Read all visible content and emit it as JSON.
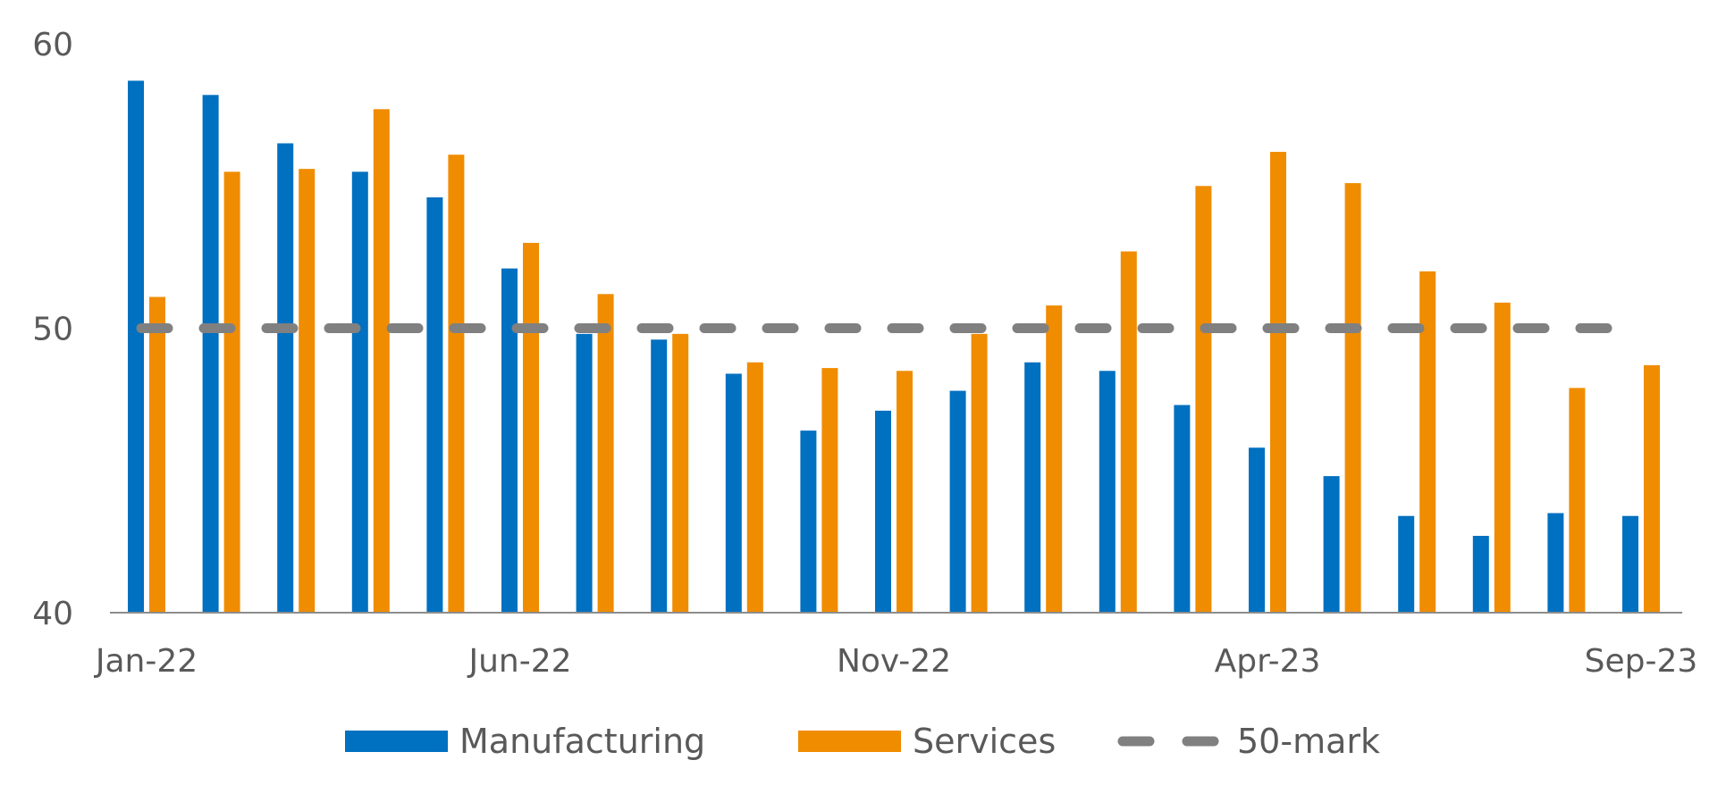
{
  "chart_data": {
    "type": "bar",
    "title": "",
    "xlabel": "",
    "ylabel": "",
    "ylim": [
      40,
      60
    ],
    "yticks": [
      40,
      50,
      60
    ],
    "xtick_labels": [
      {
        "index": 0,
        "label": "Jan-22"
      },
      {
        "index": 5,
        "label": "Jun-22"
      },
      {
        "index": 10,
        "label": "Nov-22"
      },
      {
        "index": 15,
        "label": "Apr-23"
      },
      {
        "index": 20,
        "label": "Sep-23"
      }
    ],
    "categories": [
      "Jan-22",
      "Feb-22",
      "Mar-22",
      "Apr-22",
      "May-22",
      "Jun-22",
      "Jul-22",
      "Aug-22",
      "Sep-22",
      "Oct-22",
      "Nov-22",
      "Dec-22",
      "Jan-23",
      "Feb-23",
      "Mar-23",
      "Apr-23",
      "May-23",
      "Jun-23",
      "Jul-23",
      "Aug-23",
      "Sep-23"
    ],
    "series": [
      {
        "name": "Manufacturing",
        "color": "#0070C0",
        "values": [
          58.7,
          58.2,
          56.5,
          55.5,
          54.6,
          52.1,
          49.8,
          49.6,
          48.4,
          46.4,
          47.1,
          47.8,
          48.8,
          48.5,
          47.3,
          45.8,
          44.8,
          43.4,
          42.7,
          43.5,
          43.4
        ]
      },
      {
        "name": "Services",
        "color": "#F08C00",
        "values": [
          51.1,
          55.5,
          55.6,
          57.7,
          56.1,
          53.0,
          51.2,
          49.8,
          48.8,
          48.6,
          48.5,
          49.8,
          50.8,
          52.7,
          55.0,
          56.2,
          55.1,
          52.0,
          50.9,
          47.9,
          48.7
        ]
      }
    ],
    "reference_line": {
      "name": "50-mark",
      "value": 50,
      "color": "#808080",
      "style": "dashed"
    },
    "legend": {
      "position": "bottom",
      "items": [
        "Manufacturing",
        "Services",
        "50-mark"
      ]
    },
    "grid": false
  }
}
